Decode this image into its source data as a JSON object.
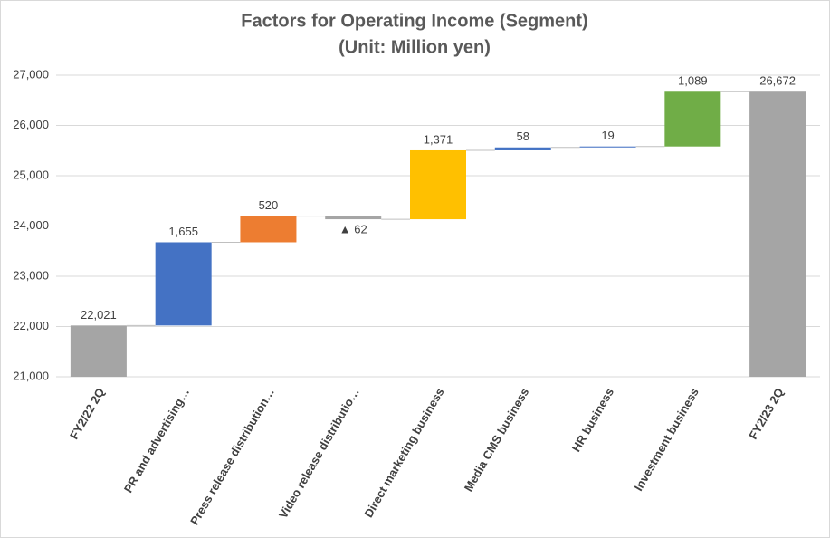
{
  "chart_data": {
    "type": "waterfall",
    "title": "Factors for Operating Income (Segment)",
    "subtitle": "(Unit: Million yen)",
    "categories": [
      "FY2/22 2Q",
      "PR and advertising…",
      "Press release distribution…",
      "Video release distributio…",
      "Direct marketing business",
      "Media CMS business",
      "HR business",
      "Investment business",
      "FY2/23 2Q"
    ],
    "measure": [
      "total",
      "relative",
      "relative",
      "relative",
      "relative",
      "relative",
      "relative",
      "relative",
      "total"
    ],
    "values": [
      22021,
      1655,
      520,
      -62,
      1371,
      58,
      19,
      1089,
      26672
    ],
    "value_labels": [
      "22,021",
      "1,655",
      "520",
      "▲ 62",
      "1,371",
      "58",
      "19",
      "1,089",
      "26,672"
    ],
    "colors": [
      "#a5a5a5",
      "#4472c4",
      "#ed7d31",
      "#a5a5a5",
      "#ffc000",
      "#4472c4",
      "#4472c4",
      "#70ad47",
      "#a5a5a5"
    ],
    "ylim": [
      21000,
      27000
    ],
    "yticks": [
      {
        "value": 21000,
        "label": "21,000"
      },
      {
        "value": 22000,
        "label": "22,000"
      },
      {
        "value": 23000,
        "label": "23,000"
      },
      {
        "value": 24000,
        "label": "24,000"
      },
      {
        "value": 25000,
        "label": "25,000"
      },
      {
        "value": 26000,
        "label": "26,000"
      },
      {
        "value": 27000,
        "label": "27,000"
      }
    ],
    "grid": true
  }
}
